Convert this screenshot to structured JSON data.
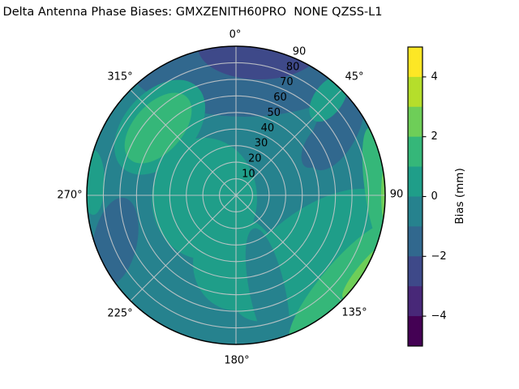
{
  "title": "Delta Antenna Phase Biases: GMXZENITH60PRO  NONE QZSS-L1",
  "chart_data": {
    "type": "heatmap",
    "subtype": "polar_filled_contour",
    "title": "Delta Antenna Phase Biases: GMXZENITH60PRO  NONE QZSS-L1",
    "azimuth_tick_labels": [
      "0°",
      "45°",
      "90",
      "135°",
      "180°",
      "225°",
      "270°",
      "315°"
    ],
    "radial_tick_labels": [
      "10",
      "20",
      "30",
      "40",
      "50",
      "60",
      "70",
      "80",
      "90"
    ],
    "radial_range": [
      0,
      90
    ],
    "grid": true,
    "colorbar": {
      "label": "Bias (mm)",
      "range": [
        -5,
        5
      ],
      "tick_values": [
        4,
        2,
        0,
        -2,
        -4
      ],
      "tick_labels": [
        "4",
        "2",
        "0",
        "−2",
        "−4"
      ],
      "levels": [
        -5,
        -4,
        -3,
        -2,
        -1,
        0,
        1,
        2,
        3,
        4,
        5
      ],
      "colors": [
        "#440154",
        "#482878",
        "#3e4989",
        "#31688e",
        "#26828e",
        "#1f9e89",
        "#35b779",
        "#6ece58",
        "#b5de2b",
        "#fde725"
      ]
    },
    "regions": [
      {
        "area": "background",
        "azimuth_deg": [
          0,
          360
        ],
        "radius": [
          0,
          90
        ],
        "bias_mm": [
          -1,
          0
        ]
      },
      {
        "area": "north cap core",
        "azimuth_deg": [
          345,
          25
        ],
        "radius": [
          72,
          90
        ],
        "bias_mm": [
          -3,
          -2
        ]
      },
      {
        "area": "north band",
        "azimuth_deg": [
          300,
          75
        ],
        "radius": [
          55,
          90
        ],
        "bias_mm": [
          -2,
          -1
        ]
      },
      {
        "area": "northeast patch",
        "azimuth_deg": [
          45,
          70
        ],
        "radius": [
          40,
          62
        ],
        "bias_mm": [
          -2,
          -1
        ]
      },
      {
        "area": "west edge blob",
        "azimuth_deg": [
          235,
          270
        ],
        "radius": [
          55,
          90
        ],
        "bias_mm": [
          -2,
          -1
        ]
      },
      {
        "area": "center, west and south",
        "azimuth_deg": [
          150,
          360
        ],
        "radius": [
          0,
          65
        ],
        "bias_mm": [
          0,
          1
        ]
      },
      {
        "area": "southeast band to east edge",
        "azimuth_deg": [
          95,
          170
        ],
        "radius": [
          40,
          90
        ],
        "bias_mm": [
          0,
          1
        ]
      },
      {
        "area": "northwest blob",
        "azimuth_deg": [
          295,
          340
        ],
        "radius": [
          35,
          80
        ],
        "bias_mm": [
          1,
          2
        ]
      },
      {
        "area": "east edge strip",
        "azimuth_deg": [
          55,
          100
        ],
        "radius": [
          78,
          90
        ],
        "bias_mm": [
          1,
          2
        ]
      },
      {
        "area": "southeast edge strip",
        "azimuth_deg": [
          100,
          165
        ],
        "radius": [
          62,
          90
        ],
        "bias_mm": [
          1,
          2
        ]
      },
      {
        "area": "east edge sliver",
        "azimuth_deg": [
          82,
          98
        ],
        "radius": [
          86,
          90
        ],
        "bias_mm": [
          2,
          3
        ]
      },
      {
        "area": "southeast edge sliver",
        "azimuth_deg": [
          112,
          142
        ],
        "radius": [
          80,
          90
        ],
        "bias_mm": [
          2,
          3
        ]
      },
      {
        "area": "south tongue",
        "azimuth_deg": [
          155,
          180
        ],
        "radius": [
          25,
          90
        ],
        "bias_mm": [
          -1,
          0
        ]
      }
    ]
  }
}
